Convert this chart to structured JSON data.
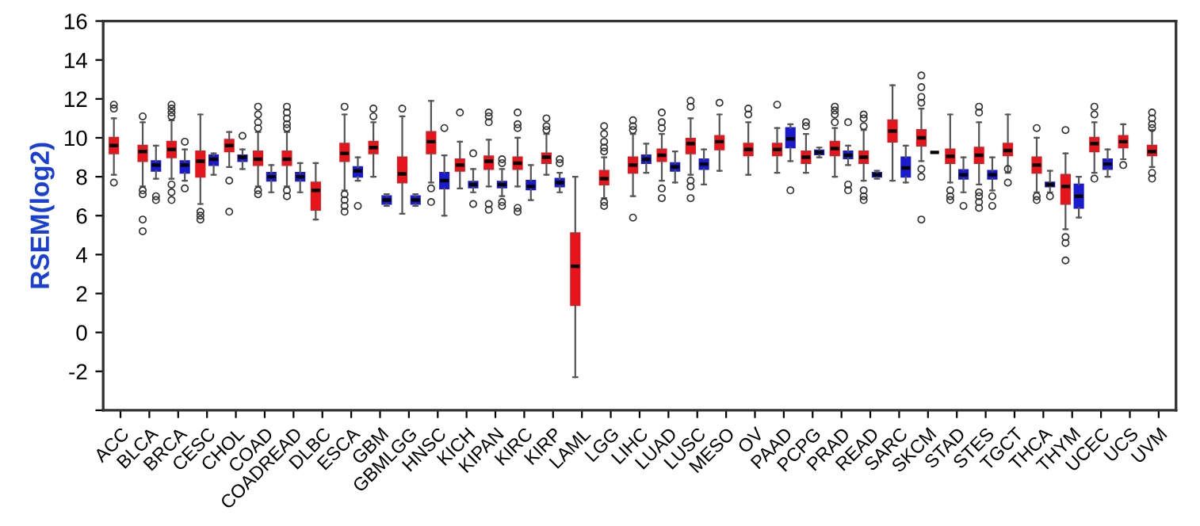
{
  "chart_data": {
    "type": "box",
    "ylabel": "RSEM(log2)",
    "ylim": [
      -4,
      16
    ],
    "yticks": [
      {
        "value": -4,
        "label": null
      },
      -2,
      0,
      2,
      4,
      6,
      8,
      10,
      12,
      14,
      16
    ],
    "grid": false,
    "legend": false,
    "categories": [
      "ACC",
      "BLCA",
      "BRCA",
      "CESC",
      "CHOL",
      "COAD",
      "COADREAD",
      "DLBC",
      "ESCA",
      "GBM",
      "GBMLGG",
      "HNSC",
      "KICH",
      "KIPAN",
      "KIRC",
      "KIRP",
      "LAML",
      "LGG",
      "LIHC",
      "LUAD",
      "LUSC",
      "MESO",
      "OV",
      "PAAD",
      "PCPG",
      "PRAD",
      "READ",
      "SARC",
      "SKCM",
      "STAD",
      "STES",
      "TGCT",
      "THCA",
      "THYM",
      "UCEC",
      "UCS",
      "UVM"
    ],
    "series": [
      {
        "color": "#e8141c",
        "boxes": [
          {
            "low": 8.1,
            "q1": 9.2,
            "median": 9.6,
            "q3": 10.0,
            "high": 11.0,
            "outliers": [
              11.7,
              11.5,
              7.7
            ]
          },
          {
            "low": 7.5,
            "q1": 8.8,
            "median": 9.3,
            "q3": 9.6,
            "high": 10.8,
            "outliers": [
              11.1,
              7.3,
              7.1,
              5.8,
              5.2
            ]
          },
          {
            "low": 7.9,
            "q1": 9.0,
            "median": 9.4,
            "q3": 9.8,
            "high": 10.9,
            "outliers": [
              11.7,
              11.5,
              11.3,
              11.1,
              7.6,
              7.2,
              6.8
            ]
          },
          {
            "low": 6.6,
            "q1": 8.0,
            "median": 8.8,
            "q3": 9.3,
            "high": 11.2,
            "outliers": [
              6.2,
              6.0,
              5.8
            ]
          },
          {
            "low": 8.5,
            "q1": 9.3,
            "median": 9.6,
            "q3": 9.9,
            "high": 10.3,
            "outliers": [
              7.8,
              6.2
            ]
          },
          {
            "low": 7.5,
            "q1": 8.6,
            "median": 8.9,
            "q3": 9.3,
            "high": 10.3,
            "outliers": [
              11.6,
              11.2,
              10.8,
              10.5,
              7.3,
              7.1
            ]
          },
          {
            "low": 7.5,
            "q1": 8.6,
            "median": 8.9,
            "q3": 9.3,
            "high": 10.3,
            "outliers": [
              11.6,
              11.3,
              11.0,
              10.7,
              10.5,
              7.3,
              7.0
            ]
          },
          {
            "low": 5.8,
            "q1": 6.3,
            "median": 7.3,
            "q3": 7.7,
            "high": 8.7
          },
          {
            "low": 7.3,
            "q1": 8.8,
            "median": 9.2,
            "q3": 9.7,
            "high": 11.2,
            "outliers": [
              11.6,
              7.1,
              6.8,
              6.5,
              6.2
            ]
          },
          {
            "low": 8.0,
            "q1": 9.2,
            "median": 9.5,
            "q3": 9.8,
            "high": 10.8,
            "outliers": [
              11.5,
              11.1
            ]
          },
          {
            "low": 6.1,
            "q1": 7.7,
            "median": 8.15,
            "q3": 9.0,
            "high": 11.1,
            "outliers": [
              11.5
            ]
          },
          {
            "low": 7.7,
            "q1": 9.2,
            "median": 9.8,
            "q3": 10.3,
            "high": 11.9,
            "outliers": [
              7.4,
              6.7
            ]
          },
          {
            "low": 7.4,
            "q1": 8.3,
            "median": 8.6,
            "q3": 8.9,
            "high": 9.8,
            "outliers": [
              11.3
            ]
          },
          {
            "low": 7.5,
            "q1": 8.4,
            "median": 8.8,
            "q3": 9.05,
            "high": 9.9,
            "outliers": [
              11.3,
              11.1,
              10.8,
              6.6,
              6.3
            ]
          },
          {
            "low": 7.5,
            "q1": 8.4,
            "median": 8.7,
            "q3": 9.0,
            "high": 10.0,
            "outliers": [
              11.3,
              10.7,
              10.5,
              6.4,
              6.2
            ]
          },
          {
            "low": 8.1,
            "q1": 8.7,
            "median": 9.0,
            "q3": 9.2,
            "high": 10.2,
            "outliers": [
              11.0,
              10.6,
              10.4
            ]
          },
          {
            "low": -2.3,
            "q1": 1.4,
            "median": 3.4,
            "q3": 5.1,
            "high": 8.0
          },
          {
            "low": 6.9,
            "q1": 7.6,
            "median": 7.9,
            "q3": 8.3,
            "high": 9.0,
            "outliers": [
              10.6,
              10.2,
              9.8,
              9.5,
              9.3,
              6.7,
              6.5
            ]
          },
          {
            "low": 7.0,
            "q1": 8.2,
            "median": 8.6,
            "q3": 9.0,
            "high": 10.2,
            "outliers": [
              10.9,
              10.6,
              10.4,
              5.9
            ]
          },
          {
            "low": 7.8,
            "q1": 8.8,
            "median": 9.1,
            "q3": 9.4,
            "high": 10.2,
            "outliers": [
              11.3,
              10.8,
              10.5,
              7.4,
              6.9
            ]
          },
          {
            "low": 8.1,
            "q1": 9.2,
            "median": 9.7,
            "q3": 9.95,
            "high": 11.0,
            "outliers": [
              11.9,
              11.6,
              7.8,
              7.5,
              6.9
            ]
          },
          {
            "low": 8.3,
            "q1": 9.4,
            "median": 9.8,
            "q3": 10.1,
            "high": 11.2,
            "outliers": [
              11.8
            ]
          },
          {
            "low": 8.1,
            "q1": 9.1,
            "median": 9.4,
            "q3": 9.7,
            "high": 10.8,
            "outliers": [
              11.5,
              11.2
            ]
          },
          {
            "low": 8.2,
            "q1": 9.1,
            "median": 9.4,
            "q3": 9.7,
            "high": 10.5,
            "outliers": [
              11.7
            ]
          },
          {
            "low": 8.2,
            "q1": 8.7,
            "median": 9.0,
            "q3": 9.3,
            "high": 10.2,
            "outliers": [
              10.8,
              10.6
            ]
          },
          {
            "low": 8.0,
            "q1": 9.1,
            "median": 9.45,
            "q3": 9.8,
            "high": 10.5,
            "outliers": [
              11.6,
              11.4,
              11.2,
              10.8
            ]
          },
          {
            "low": 7.8,
            "q1": 8.7,
            "median": 9.0,
            "q3": 9.3,
            "high": 10.4,
            "outliers": [
              11.2,
              11.0,
              10.6,
              7.3,
              7.0,
              6.8
            ]
          },
          {
            "low": 7.8,
            "q1": 9.8,
            "median": 10.35,
            "q3": 10.9,
            "high": 12.7
          },
          {
            "low": 8.8,
            "q1": 9.6,
            "median": 10.0,
            "q3": 10.4,
            "high": 11.5,
            "outliers": [
              13.2,
              12.6,
              12.1,
              11.8,
              8.4,
              8.0,
              5.8
            ]
          },
          {
            "low": 7.7,
            "q1": 8.7,
            "median": 9.05,
            "q3": 9.4,
            "high": 11.2,
            "outliers": [
              7.3,
              7.0,
              6.8
            ]
          },
          {
            "low": 7.6,
            "q1": 8.7,
            "median": 9.1,
            "q3": 9.5,
            "high": 10.8,
            "outliers": [
              11.6,
              11.3,
              7.2,
              7.0,
              6.7,
              6.4
            ]
          },
          {
            "low": 8.2,
            "q1": 9.1,
            "median": 9.35,
            "q3": 9.7,
            "high": 11.2,
            "outliers": [
              8.4,
              7.7
            ]
          },
          {
            "low": 7.2,
            "q1": 8.2,
            "median": 8.6,
            "q3": 9.0,
            "high": 10.0,
            "outliers": [
              10.5,
              7.0,
              6.8
            ]
          },
          {
            "low": 5.3,
            "q1": 6.6,
            "median": 7.5,
            "q3": 8.1,
            "high": 9.2,
            "outliers": [
              10.4,
              4.9,
              4.6,
              3.7
            ]
          },
          {
            "low": 8.2,
            "q1": 9.3,
            "median": 9.7,
            "q3": 10.0,
            "high": 10.8,
            "outliers": [
              11.6,
              11.2,
              7.9
            ]
          },
          {
            "low": 8.9,
            "q1": 9.5,
            "median": 9.8,
            "q3": 10.1,
            "high": 10.7,
            "outliers": [
              8.6
            ]
          },
          {
            "low": 8.5,
            "q1": 9.1,
            "median": 9.3,
            "q3": 9.6,
            "high": 10.4,
            "outliers": [
              11.3,
              11.0,
              10.7,
              10.5,
              8.2,
              7.9
            ]
          }
        ]
      },
      {
        "color": "#1a1ad0",
        "boxes": [
          null,
          {
            "low": 7.9,
            "q1": 8.3,
            "median": 8.6,
            "q3": 8.8,
            "high": 9.6,
            "outliers": [
              7.0,
              6.8
            ]
          },
          {
            "low": 7.8,
            "q1": 8.2,
            "median": 8.6,
            "q3": 8.8,
            "high": 9.4,
            "outliers": [
              9.8,
              7.4
            ]
          },
          {
            "low": 8.1,
            "q1": 8.6,
            "median": 8.9,
            "q3": 9.1,
            "high": 9.2
          },
          {
            "low": 8.4,
            "q1": 8.8,
            "median": 9.0,
            "q3": 9.1,
            "high": 9.4,
            "outliers": [
              10.1
            ]
          },
          {
            "low": 7.2,
            "q1": 7.8,
            "median": 8.0,
            "q3": 8.2,
            "high": 8.6
          },
          {
            "low": 7.2,
            "q1": 7.8,
            "median": 8.0,
            "q3": 8.2,
            "high": 8.7
          },
          null,
          {
            "low": 7.8,
            "q1": 8.0,
            "median": 8.3,
            "q3": 8.5,
            "high": 9.0,
            "outliers": [
              6.5
            ]
          },
          {
            "low": 6.5,
            "q1": 6.6,
            "median": 6.8,
            "q3": 7.0,
            "high": 7.1
          },
          {
            "low": 6.5,
            "q1": 6.6,
            "median": 6.8,
            "q3": 7.0,
            "high": 7.1
          },
          {
            "low": 6.0,
            "q1": 7.4,
            "median": 7.8,
            "q3": 8.2,
            "high": 9.1,
            "outliers": [
              10.5
            ]
          },
          {
            "low": 7.2,
            "q1": 7.45,
            "median": 7.6,
            "q3": 7.75,
            "high": 8.4,
            "outliers": [
              9.2,
              6.6
            ]
          },
          {
            "low": 7.0,
            "q1": 7.45,
            "median": 7.6,
            "q3": 7.75,
            "high": 8.4,
            "outliers": [
              8.9,
              8.7,
              6.7,
              6.5
            ]
          },
          {
            "low": 6.8,
            "q1": 7.35,
            "median": 7.5,
            "q3": 7.8,
            "high": 8.6
          },
          {
            "low": 7.2,
            "q1": 7.5,
            "median": 7.7,
            "q3": 7.9,
            "high": 8.2,
            "outliers": [
              8.9,
              8.7
            ]
          },
          null,
          null,
          {
            "low": 8.2,
            "q1": 8.7,
            "median": 8.9,
            "q3": 9.1,
            "high": 9.7
          },
          {
            "low": 7.7,
            "q1": 8.3,
            "median": 8.5,
            "q3": 8.7,
            "high": 9.3
          },
          {
            "low": 7.6,
            "q1": 8.4,
            "median": 8.65,
            "q3": 8.9,
            "high": 9.4
          },
          null,
          null,
          {
            "low": 8.8,
            "q1": 9.5,
            "median": 9.95,
            "q3": 10.5,
            "high": 10.7,
            "outliers": [
              7.3
            ]
          },
          {
            "low": 9.0,
            "q1": 9.15,
            "median": 9.25,
            "q3": 9.35,
            "high": 9.5
          },
          {
            "low": 8.6,
            "q1": 8.95,
            "median": 9.1,
            "q3": 9.3,
            "high": 9.6,
            "outliers": [
              10.8,
              7.6,
              7.3
            ]
          },
          {
            "low": 7.9,
            "q1": 8.0,
            "median": 8.1,
            "q3": 8.2,
            "high": 8.3
          },
          {
            "low": 7.7,
            "q1": 8.0,
            "median": 8.45,
            "q3": 9.0,
            "high": 9.6
          },
          {
            "low": 9.25,
            "q1": 9.25,
            "median": 9.25,
            "q3": 9.25,
            "high": 9.25
          },
          {
            "low": 7.2,
            "q1": 7.9,
            "median": 8.1,
            "q3": 8.35,
            "high": 9.0,
            "outliers": [
              6.5
            ]
          },
          {
            "low": 7.3,
            "q1": 7.9,
            "median": 8.1,
            "q3": 8.3,
            "high": 9.0,
            "outliers": [
              7.0,
              6.5
            ]
          },
          null,
          {
            "low": 7.2,
            "q1": 7.5,
            "median": 7.6,
            "q3": 7.7,
            "high": 8.3,
            "outliers": [
              7.0
            ]
          },
          {
            "low": 5.9,
            "q1": 6.4,
            "median": 7.0,
            "q3": 7.6,
            "high": 8.0
          },
          {
            "low": 8.0,
            "q1": 8.4,
            "median": 8.65,
            "q3": 8.9,
            "high": 9.4
          },
          null,
          null
        ]
      }
    ]
  }
}
